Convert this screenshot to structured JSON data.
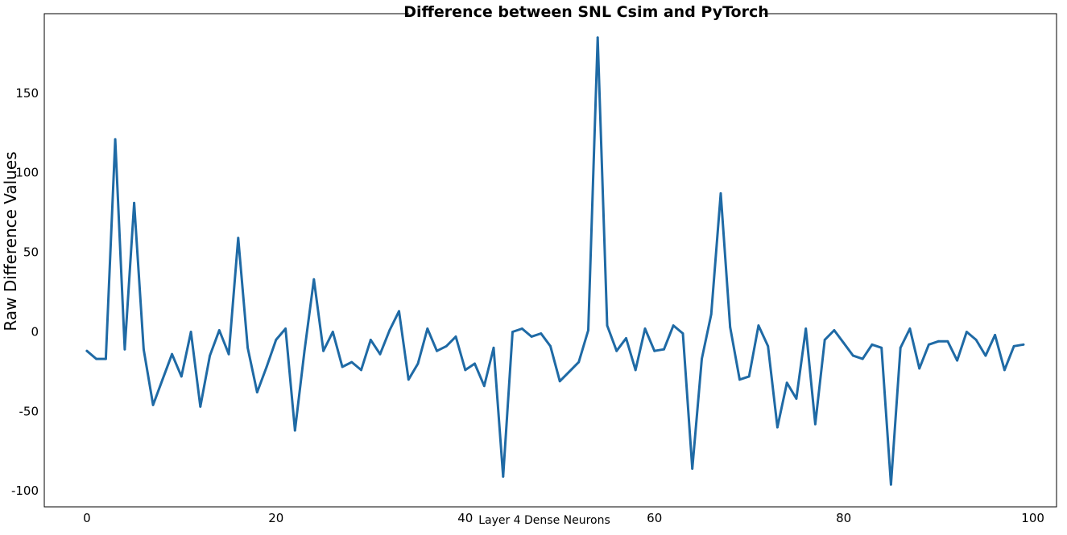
{
  "chart_data": {
    "type": "line",
    "title": "Difference between SNL Csim and PyTorch",
    "xlabel": "Layer 4 Dense Neurons",
    "ylabel": "Raw Difference Values",
    "xlim": [
      -4.5,
      102.5
    ],
    "ylim": [
      -110,
      200
    ],
    "x_ticks": [
      0,
      20,
      40,
      60,
      80,
      100
    ],
    "y_ticks": [
      -100,
      -50,
      0,
      50,
      100,
      150
    ],
    "grid": false,
    "line_color": "#1f6aa5",
    "series": [
      {
        "x": [
          0,
          1,
          2,
          3,
          4,
          5,
          6,
          7,
          8,
          9,
          10,
          11,
          12,
          13,
          14,
          15,
          16,
          17,
          18,
          19,
          20,
          21,
          22,
          23,
          24,
          25,
          26,
          27,
          28,
          29,
          30,
          31,
          32,
          33,
          34,
          35,
          36,
          37,
          38,
          39,
          40,
          41,
          42,
          43,
          44,
          45,
          46,
          47,
          48,
          49,
          50,
          51,
          52,
          53,
          54,
          55,
          56,
          57,
          58,
          59,
          60,
          61,
          62,
          63,
          64,
          65,
          66,
          67,
          68,
          69,
          70,
          71,
          72,
          73,
          74,
          75,
          76,
          77,
          78,
          79,
          80,
          81,
          82,
          83,
          84,
          85,
          86,
          87,
          88,
          89,
          90,
          91,
          92,
          93,
          94,
          95,
          96,
          97,
          98,
          99
        ],
        "y": [
          -12,
          -17,
          -17,
          121,
          -11,
          81,
          -11,
          -46,
          -30,
          -14,
          -28,
          0,
          -47,
          -15,
          1,
          -14,
          59,
          -10,
          -38,
          -22,
          -5,
          2,
          -62,
          -12,
          33,
          -12,
          0,
          -22,
          -19,
          -24,
          -5,
          -14,
          1,
          13,
          -30,
          -20,
          2,
          -12,
          -9,
          -3,
          -24,
          -20,
          -34,
          -10,
          -91,
          0,
          2,
          -3,
          -1,
          -9,
          -31,
          -25,
          -19,
          1,
          185,
          4,
          -12,
          -4,
          -24,
          2,
          -12,
          -11,
          4,
          -1,
          -86,
          -17,
          11,
          87,
          3,
          -30,
          -28,
          4,
          -9,
          -60,
          -32,
          -42,
          2,
          -58,
          -5,
          1,
          -7,
          -15,
          -17,
          -8,
          -10,
          -96,
          -10,
          2,
          -23,
          -8,
          -6,
          -6,
          -18,
          0,
          -5,
          -15,
          -2,
          -24,
          -9,
          -8
        ]
      }
    ]
  }
}
